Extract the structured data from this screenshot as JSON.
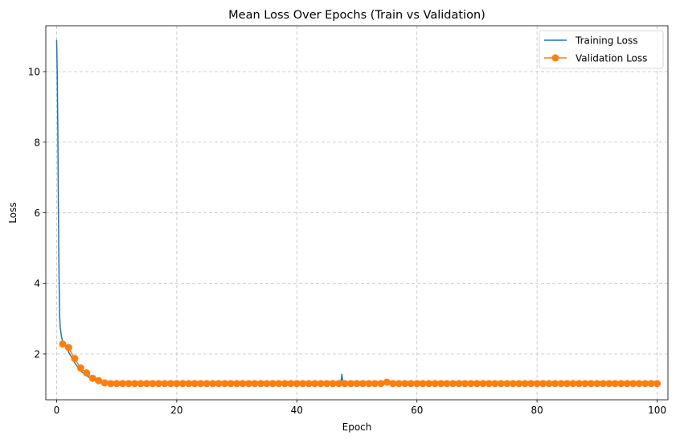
{
  "chart_data": {
    "type": "line",
    "title": "Mean Loss Over Epochs (Train vs Validation)",
    "xlabel": "Epoch",
    "ylabel": "Loss",
    "xlim": [
      -1.8,
      101.8
    ],
    "ylim": [
      0.7,
      11.3
    ],
    "xticks": [
      0,
      20,
      40,
      60,
      80,
      100
    ],
    "yticks": [
      2,
      4,
      6,
      8,
      10
    ],
    "grid": true,
    "legend_position": "top-right",
    "series": [
      {
        "name": "Training Loss",
        "color": "#1f77b4",
        "marker": "none",
        "x": [
          0,
          0.1,
          0.2,
          0.3,
          0.4,
          0.5,
          0.6,
          0.8,
          1.0,
          1.5,
          2,
          3,
          4,
          5,
          6,
          7,
          8,
          10,
          20,
          30,
          40,
          45,
          47.3,
          47.5,
          47.7,
          50,
          55,
          60,
          70,
          80,
          90,
          100
        ],
        "values": [
          10.9,
          10.0,
          8.3,
          6.0,
          4.2,
          3.1,
          2.75,
          2.5,
          2.35,
          2.25,
          2.05,
          1.75,
          1.52,
          1.38,
          1.27,
          1.2,
          1.16,
          1.15,
          1.15,
          1.15,
          1.15,
          1.15,
          1.15,
          1.42,
          1.15,
          1.15,
          1.15,
          1.15,
          1.15,
          1.15,
          1.15,
          1.15
        ]
      },
      {
        "name": "Validation Loss",
        "color": "#ff7f0e",
        "marker": "circle",
        "x": [
          1,
          2,
          3,
          4,
          5,
          6,
          7,
          8,
          9,
          10,
          11,
          12,
          13,
          14,
          15,
          16,
          17,
          18,
          19,
          20,
          21,
          22,
          23,
          24,
          25,
          26,
          27,
          28,
          29,
          30,
          31,
          32,
          33,
          34,
          35,
          36,
          37,
          38,
          39,
          40,
          41,
          42,
          43,
          44,
          45,
          46,
          47,
          48,
          49,
          50,
          51,
          52,
          53,
          54,
          55,
          56,
          57,
          58,
          59,
          60,
          61,
          62,
          63,
          64,
          65,
          66,
          67,
          68,
          69,
          70,
          71,
          72,
          73,
          74,
          75,
          76,
          77,
          78,
          79,
          80,
          81,
          82,
          83,
          84,
          85,
          86,
          87,
          88,
          89,
          90,
          91,
          92,
          93,
          94,
          95,
          96,
          97,
          98,
          99,
          100
        ],
        "values": [
          2.28,
          2.18,
          1.87,
          1.6,
          1.46,
          1.31,
          1.24,
          1.18,
          1.16,
          1.16,
          1.16,
          1.16,
          1.16,
          1.16,
          1.16,
          1.16,
          1.16,
          1.16,
          1.16,
          1.16,
          1.16,
          1.16,
          1.16,
          1.16,
          1.16,
          1.16,
          1.16,
          1.16,
          1.16,
          1.16,
          1.16,
          1.16,
          1.16,
          1.16,
          1.16,
          1.16,
          1.16,
          1.16,
          1.16,
          1.16,
          1.16,
          1.16,
          1.16,
          1.16,
          1.16,
          1.16,
          1.16,
          1.16,
          1.16,
          1.16,
          1.16,
          1.16,
          1.16,
          1.16,
          1.2,
          1.16,
          1.16,
          1.16,
          1.16,
          1.16,
          1.16,
          1.16,
          1.16,
          1.16,
          1.16,
          1.16,
          1.16,
          1.16,
          1.16,
          1.16,
          1.16,
          1.16,
          1.16,
          1.16,
          1.16,
          1.16,
          1.16,
          1.16,
          1.16,
          1.16,
          1.16,
          1.16,
          1.16,
          1.16,
          1.16,
          1.16,
          1.16,
          1.16,
          1.16,
          1.16,
          1.16,
          1.16,
          1.16,
          1.16,
          1.16,
          1.16,
          1.16,
          1.16,
          1.16,
          1.16
        ]
      }
    ]
  }
}
